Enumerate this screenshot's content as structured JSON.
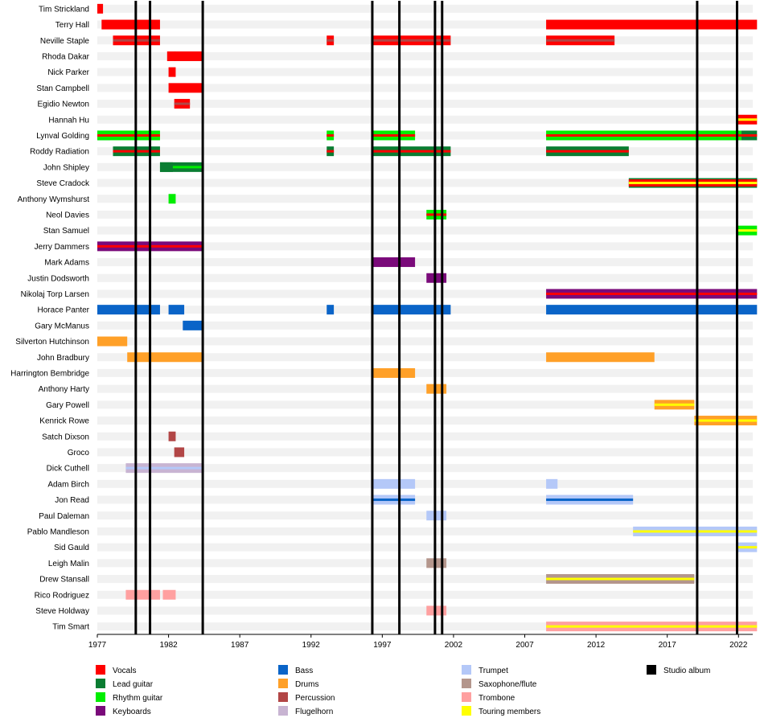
{
  "chart_data": {
    "type": "timeline",
    "x_range": [
      1977,
      2023
    ],
    "x_ticks": [
      "1977",
      "1982",
      "1987",
      "1992",
      "1997",
      "2002",
      "2007",
      "2012",
      "2017",
      "2022"
    ],
    "colors": {
      "vocals": "#ff0000",
      "lead_guitar": "#0a7d32",
      "rhythm_guitar": "#00ee00",
      "keyboards": "#7a0a7a",
      "bass": "#0a64c8",
      "drums": "#ffa028",
      "percussion": "#b24646",
      "flugelhorn": "#c8b4d2",
      "trumpet": "#b4c8f8",
      "sax": "#b4968c",
      "trombone": "#ffa0a0",
      "touring": "#ffff00",
      "album": "#000000"
    },
    "legend": [
      {
        "key": "vocals",
        "label": "Vocals"
      },
      {
        "key": "lead_guitar",
        "label": "Lead guitar"
      },
      {
        "key": "rhythm_guitar",
        "label": "Rhythm guitar"
      },
      {
        "key": "keyboards",
        "label": "Keyboards"
      },
      {
        "key": "bass",
        "label": "Bass"
      },
      {
        "key": "drums",
        "label": "Drums"
      },
      {
        "key": "percussion",
        "label": "Percussion"
      },
      {
        "key": "flugelhorn",
        "label": "Flugelhorn"
      },
      {
        "key": "trumpet",
        "label": "Trumpet"
      },
      {
        "key": "sax",
        "label": "Saxophone/flute"
      },
      {
        "key": "trombone",
        "label": "Trombone"
      },
      {
        "key": "touring",
        "label": "Touring members"
      },
      {
        "key": "album",
        "label": "Studio album"
      }
    ],
    "albums": [
      1979.7,
      1980.7,
      1984.4,
      1996.3,
      1998.2,
      2000.7,
      2001.2,
      2019.1,
      2021.9
    ],
    "members": [
      {
        "name": "Tim Strickland",
        "bars": [
          {
            "s": 1977.0,
            "e": 1977.4,
            "c": "vocals"
          }
        ]
      },
      {
        "name": "Terry Hall",
        "bars": [
          {
            "s": 1977.3,
            "e": 1981.4,
            "c": "vocals"
          },
          {
            "s": 2008.5,
            "e": 2023.3,
            "c": "vocals"
          }
        ]
      },
      {
        "name": "Neville Staple",
        "bars": [
          {
            "s": 1978.1,
            "e": 1981.4,
            "c": "vocals",
            "i": "percussion"
          },
          {
            "s": 1993.1,
            "e": 1993.6,
            "c": "vocals",
            "i": "percussion"
          },
          {
            "s": 1996.3,
            "e": 2001.8,
            "c": "vocals",
            "i": "percussion"
          },
          {
            "s": 2008.5,
            "e": 2013.3,
            "c": "vocals",
            "i": "percussion"
          }
        ]
      },
      {
        "name": "Rhoda Dakar",
        "bars": [
          {
            "s": 1981.9,
            "e": 1982.5,
            "c": "vocals"
          },
          {
            "s": 1982.4,
            "e": 1984.4,
            "c": "vocals"
          }
        ]
      },
      {
        "name": "Nick Parker",
        "bars": [
          {
            "s": 1982.0,
            "e": 1982.5,
            "c": "vocals"
          }
        ]
      },
      {
        "name": "Stan Campbell",
        "bars": [
          {
            "s": 1982.0,
            "e": 1984.4,
            "c": "vocals"
          }
        ]
      },
      {
        "name": "Egidio Newton",
        "bars": [
          {
            "s": 1982.4,
            "e": 1983.5,
            "c": "vocals",
            "i": "percussion"
          }
        ]
      },
      {
        "name": "Hannah Hu",
        "bars": [
          {
            "s": 2021.9,
            "e": 2023.3,
            "c": "vocals",
            "i": "touring"
          }
        ]
      },
      {
        "name": "Lynval Golding",
        "bars": [
          {
            "s": 1977.0,
            "e": 1977.9,
            "c": "lead_guitar",
            "i": "vocals"
          },
          {
            "s": 1977.0,
            "e": 1981.4,
            "c": "rhythm_guitar",
            "i": "vocals"
          },
          {
            "s": 1993.1,
            "e": 1993.6,
            "c": "rhythm_guitar",
            "i": "vocals"
          },
          {
            "s": 1996.3,
            "e": 1999.3,
            "c": "rhythm_guitar",
            "i": "vocals"
          },
          {
            "s": 2008.5,
            "e": 2022.2,
            "c": "rhythm_guitar",
            "i": "vocals"
          },
          {
            "s": 2022.2,
            "e": 2023.3,
            "c": "lead_guitar",
            "i": "vocals"
          }
        ]
      },
      {
        "name": "Roddy Radiation",
        "bars": [
          {
            "s": 1978.1,
            "e": 1981.4,
            "c": "lead_guitar",
            "i": "vocals"
          },
          {
            "s": 1993.1,
            "e": 1993.6,
            "c": "lead_guitar",
            "i": "vocals"
          },
          {
            "s": 1996.3,
            "e": 2001.8,
            "c": "lead_guitar",
            "i": "vocals"
          },
          {
            "s": 2008.5,
            "e": 2014.3,
            "c": "lead_guitar",
            "i": "vocals"
          }
        ]
      },
      {
        "name": "John Shipley",
        "bars": [
          {
            "s": 1981.4,
            "e": 1984.4,
            "c": "lead_guitar",
            "i": "rhythm_guitar"
          },
          {
            "s": 1981.4,
            "e": 1982.3,
            "c": "lead_guitar"
          }
        ]
      },
      {
        "name": "Steve Cradock",
        "bars": [
          {
            "s": 2014.3,
            "e": 2023.3,
            "c": "vocals",
            "i": "touring",
            "o": "lead_guitar"
          }
        ]
      },
      {
        "name": "Anthony Wymshurst",
        "bars": [
          {
            "s": 1982.0,
            "e": 1982.5,
            "c": "rhythm_guitar"
          }
        ]
      },
      {
        "name": "Neol Davies",
        "bars": [
          {
            "s": 2000.1,
            "e": 2001.5,
            "c": "rhythm_guitar",
            "i": "vocals"
          }
        ]
      },
      {
        "name": "Stan Samuel",
        "bars": [
          {
            "s": 2021.9,
            "e": 2023.3,
            "c": "rhythm_guitar",
            "i": "touring"
          }
        ]
      },
      {
        "name": "Jerry Dammers",
        "bars": [
          {
            "s": 1977.0,
            "e": 1984.4,
            "c": "keyboards",
            "i": "vocals"
          }
        ]
      },
      {
        "name": "Mark Adams",
        "bars": [
          {
            "s": 1996.3,
            "e": 1999.3,
            "c": "keyboards"
          }
        ]
      },
      {
        "name": "Justin Dodsworth",
        "bars": [
          {
            "s": 2000.1,
            "e": 2001.5,
            "c": "keyboards"
          }
        ]
      },
      {
        "name": "Nikolaj Torp Larsen",
        "bars": [
          {
            "s": 2008.5,
            "e": 2023.3,
            "c": "keyboards",
            "i": "vocals"
          }
        ]
      },
      {
        "name": "Horace Panter",
        "bars": [
          {
            "s": 1977.0,
            "e": 1981.4,
            "c": "bass"
          },
          {
            "s": 1982.0,
            "e": 1983.1,
            "c": "bass"
          },
          {
            "s": 1993.1,
            "e": 1993.6,
            "c": "bass"
          },
          {
            "s": 1996.3,
            "e": 2001.8,
            "c": "bass"
          },
          {
            "s": 2008.5,
            "e": 2023.3,
            "c": "bass"
          }
        ]
      },
      {
        "name": "Gary McManus",
        "bars": [
          {
            "s": 1983.0,
            "e": 1984.4,
            "c": "bass"
          }
        ]
      },
      {
        "name": "Silverton Hutchinson",
        "bars": [
          {
            "s": 1977.0,
            "e": 1979.1,
            "c": "drums"
          }
        ]
      },
      {
        "name": "John Bradbury",
        "bars": [
          {
            "s": 1979.1,
            "e": 1984.4,
            "c": "drums"
          },
          {
            "s": 2008.5,
            "e": 2016.1,
            "c": "drums"
          }
        ]
      },
      {
        "name": "Harrington Bembridge",
        "bars": [
          {
            "s": 1996.3,
            "e": 1999.3,
            "c": "drums"
          }
        ]
      },
      {
        "name": "Anthony Harty",
        "bars": [
          {
            "s": 2000.1,
            "e": 2001.5,
            "c": "drums"
          }
        ]
      },
      {
        "name": "Gary Powell",
        "bars": [
          {
            "s": 2016.1,
            "e": 2018.9,
            "c": "drums",
            "i": "touring"
          }
        ]
      },
      {
        "name": "Kenrick Rowe",
        "bars": [
          {
            "s": 2018.9,
            "e": 2023.3,
            "c": "drums",
            "i": "touring"
          }
        ]
      },
      {
        "name": "Satch Dixson",
        "bars": [
          {
            "s": 1982.0,
            "e": 1982.5,
            "c": "percussion"
          }
        ]
      },
      {
        "name": "Groco",
        "bars": [
          {
            "s": 1982.4,
            "e": 1983.1,
            "c": "percussion"
          }
        ]
      },
      {
        "name": "Dick Cuthell",
        "bars": [
          {
            "s": 1979.0,
            "e": 1984.4,
            "c": "flugelhorn",
            "i": "trumpet"
          }
        ]
      },
      {
        "name": "Adam Birch",
        "bars": [
          {
            "s": 1996.3,
            "e": 1999.3,
            "c": "trumpet"
          },
          {
            "s": 2008.5,
            "e": 2009.3,
            "c": "trumpet"
          }
        ]
      },
      {
        "name": "Jon Read",
        "bars": [
          {
            "s": 1996.3,
            "e": 1999.3,
            "c": "trumpet",
            "i": "bass"
          },
          {
            "s": 2008.5,
            "e": 2014.6,
            "c": "trumpet",
            "i": "bass"
          }
        ]
      },
      {
        "name": "Paul Daleman",
        "bars": [
          {
            "s": 2000.1,
            "e": 2001.5,
            "c": "trumpet"
          }
        ]
      },
      {
        "name": "Pablo Mandleson",
        "bars": [
          {
            "s": 2014.6,
            "e": 2023.3,
            "c": "trumpet",
            "i": "touring"
          }
        ]
      },
      {
        "name": "Sid Gauld",
        "bars": [
          {
            "s": 2021.9,
            "e": 2023.3,
            "c": "trumpet",
            "i": "touring"
          }
        ]
      },
      {
        "name": "Leigh Malin",
        "bars": [
          {
            "s": 2000.1,
            "e": 2001.5,
            "c": "sax"
          }
        ]
      },
      {
        "name": "Drew Stansall",
        "bars": [
          {
            "s": 2008.5,
            "e": 2018.9,
            "c": "sax",
            "i": "touring"
          }
        ]
      },
      {
        "name": "Rico Rodriguez",
        "bars": [
          {
            "s": 1979.0,
            "e": 1981.4,
            "c": "trombone"
          },
          {
            "s": 1981.6,
            "e": 1982.5,
            "c": "trombone"
          }
        ]
      },
      {
        "name": "Steve Holdway",
        "bars": [
          {
            "s": 2000.1,
            "e": 2001.5,
            "c": "trombone"
          }
        ]
      },
      {
        "name": "Tim Smart",
        "bars": [
          {
            "s": 2008.5,
            "e": 2023.3,
            "c": "trombone",
            "i": "touring"
          }
        ]
      }
    ]
  }
}
